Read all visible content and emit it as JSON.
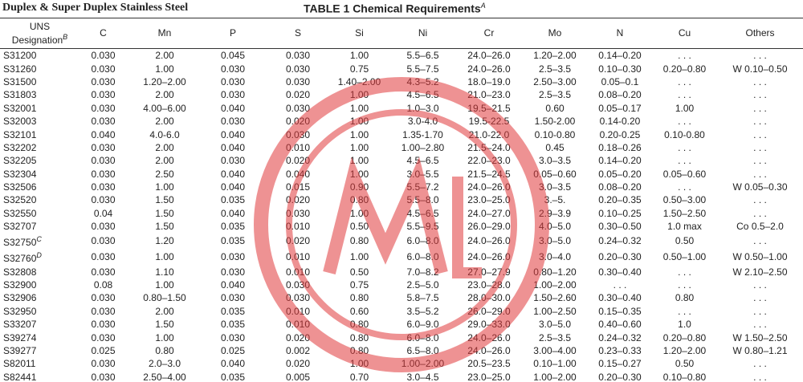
{
  "header": {
    "left_title": "Duplex & Super Duplex Stainless Steel",
    "table_title": "TABLE 1 Chemical Requirements",
    "table_title_mark": "A"
  },
  "table": {
    "columns": [
      {
        "label": "UNS Designation",
        "mark": "B"
      },
      {
        "label": "C"
      },
      {
        "label": "Mn"
      },
      {
        "label": "P"
      },
      {
        "label": "S"
      },
      {
        "label": "Si"
      },
      {
        "label": "Ni"
      },
      {
        "label": "Cr"
      },
      {
        "label": "Mo"
      },
      {
        "label": "N"
      },
      {
        "label": "Cu"
      },
      {
        "label": "Others"
      }
    ],
    "rows": [
      {
        "uns": "S31200",
        "values": [
          "0.030",
          "2.00",
          "0.045",
          "0.030",
          "1.00",
          "5.5–6.5",
          "24.0–26.0",
          "1.20–2.00",
          "0.14–0.20",
          ". . .",
          ". . ."
        ]
      },
      {
        "uns": "S31260",
        "values": [
          "0.030",
          "1.00",
          "0.030",
          "0.030",
          "0.75",
          "5.5–7.5",
          "24.0–26.0",
          "2.5–3.5",
          "0.10–0.30",
          "0.20–0.80",
          "W 0.10–0.50"
        ]
      },
      {
        "uns": "S31500",
        "values": [
          "0.030",
          "1.20–2.00",
          "0.030",
          "0.030",
          "1.40–2.00",
          "4.3–5.2",
          "18.0–19.0",
          "2.50–3.00",
          "0.05–0.1",
          ". . .",
          ". . ."
        ]
      },
      {
        "uns": "S31803",
        "values": [
          "0.030",
          "2.00",
          "0.030",
          "0.020",
          "1.00",
          "4.5–6.5",
          "21.0–23.0",
          "2.5–3.5",
          "0.08–0.20",
          ". . .",
          ". . ."
        ]
      },
      {
        "uns": "S32001",
        "values": [
          "0.030",
          "4.00–6.00",
          "0.040",
          "0.030",
          "1.00",
          "1.0–3.0",
          "19.5–21.5",
          "0.60",
          "0.05–0.17",
          "1.00",
          ". . ."
        ]
      },
      {
        "uns": "S32003",
        "values": [
          "0.030",
          "2.00",
          "0.030",
          "0.020",
          "1.00",
          "3.0-4.0",
          "19.5-22.5",
          "1.50-2.00",
          "0.14-0.20",
          ". . .",
          ". . ."
        ]
      },
      {
        "uns": "S32101",
        "values": [
          "0.040",
          "4.0-6.0",
          "0.040",
          "0.030",
          "1.00",
          "1.35-1.70",
          "21.0-22.0",
          "0.10-0.80",
          "0.20-0.25",
          "0.10-0.80",
          ". . ."
        ]
      },
      {
        "uns": "S32202",
        "values": [
          "0.030",
          "2.00",
          "0.040",
          "0.010",
          "1.00",
          "1.00–2.80",
          "21.5–24.0",
          "0.45",
          "0.18–0.26",
          ". . .",
          ". . ."
        ]
      },
      {
        "uns": "S32205",
        "values": [
          "0.030",
          "2.00",
          "0.030",
          "0.020",
          "1.00",
          "4.5–6.5",
          "22.0–23.0",
          "3.0–3.5",
          "0.14–0.20",
          ". . .",
          ". . ."
        ]
      },
      {
        "uns": "S32304",
        "values": [
          "0.030",
          "2.50",
          "0.040",
          "0.040",
          "1.00",
          "3.0–5.5",
          "21.5–24.5",
          "0.05–0.60",
          "0.05–0.20",
          "0.05–0.60",
          ". . ."
        ]
      },
      {
        "uns": "S32506",
        "values": [
          "0.030",
          "1.00",
          "0.040",
          "0.015",
          "0.90",
          "5.5–7.2",
          "24.0–26.0",
          "3.0–3.5",
          "0.08–0.20",
          ". . .",
          "W 0.05–0.30"
        ]
      },
      {
        "uns": "S32520",
        "values": [
          "0.030",
          "1.50",
          "0.035",
          "0.020",
          "0.80",
          "5.5–8.0",
          "23.0–25.0",
          "3.–5.",
          "0.20–0.35",
          "0.50–3.00",
          ". . ."
        ]
      },
      {
        "uns": "S32550",
        "values": [
          "0.04",
          "1.50",
          "0.040",
          "0.030",
          "1.00",
          "4.5–6.5",
          "24.0–27.0",
          "2.9–3.9",
          "0.10–0.25",
          "1.50–2.50",
          ". . ."
        ]
      },
      {
        "uns": "S32707",
        "values": [
          "0.030",
          "1.50",
          "0.035",
          "0.010",
          "0.50",
          "5.5–9.5",
          "26.0–29.0",
          "4.0–5.0",
          "0.30–0.50",
          "1.0 max",
          "Co 0.5–2.0"
        ]
      },
      {
        "uns": "S32750",
        "mark": "C",
        "values": [
          "0.030",
          "1.20",
          "0.035",
          "0.020",
          "0.80",
          "6.0–8.0",
          "24.0–26.0",
          "3.0–5.0",
          "0.24–0.32",
          "0.50",
          ". . ."
        ]
      },
      {
        "uns": "S32760",
        "mark": "D",
        "values": [
          "0.030",
          "1.00",
          "0.030",
          "0.010",
          "1.00",
          "6.0–8.0",
          "24.0–26.0",
          "3.0–4.0",
          "0.20–0.30",
          "0.50–1.00",
          "W 0.50–1.00"
        ]
      },
      {
        "uns": "S32808",
        "values": [
          "0.030",
          "1.10",
          "0.030",
          "0.010",
          "0.50",
          "7.0–8.2",
          "27.0–27.9",
          "0.80–1.20",
          "0.30–0.40",
          ". . .",
          "W 2.10–2.50"
        ]
      },
      {
        "uns": "S32900",
        "values": [
          "0.08",
          "1.00",
          "0.040",
          "0.030",
          "0.75",
          "2.5–5.0",
          "23.0–28.0",
          "1.00–2.00",
          ". . .",
          ". . .",
          ". . ."
        ]
      },
      {
        "uns": "S32906",
        "values": [
          "0.030",
          "0.80–1.50",
          "0.030",
          "0.030",
          "0.80",
          "5.8–7.5",
          "28.0–30.0",
          "1.50–2.60",
          "0.30–0.40",
          "0.80",
          ". . ."
        ]
      },
      {
        "uns": "S32950",
        "values": [
          "0.030",
          "2.00",
          "0.035",
          "0.010",
          "0.60",
          "3.5–5.2",
          "26.0–29.0",
          "1.00–2.50",
          "0.15–0.35",
          ". . .",
          ". . ."
        ]
      },
      {
        "uns": "S33207",
        "values": [
          "0.030",
          "1.50",
          "0.035",
          "0.010",
          "0.80",
          "6.0–9.0",
          "29.0–33.0",
          "3.0–5.0",
          "0.40–0.60",
          "1.0",
          ". . ."
        ]
      },
      {
        "uns": "S39274",
        "values": [
          "0.030",
          "1.00",
          "0.030",
          "0.020",
          "0.80",
          "6.0–8.0",
          "24.0–26.0",
          "2.5–3.5",
          "0.24–0.32",
          "0.20–0.80",
          "W 1.50–2.50"
        ]
      },
      {
        "uns": "S39277",
        "values": [
          "0.025",
          "0.80",
          "0.025",
          "0.002",
          "0.80",
          "6.5–8.0",
          "24.0–26.0",
          "3.00–4.00",
          "0.23–0.33",
          "1.20–2.00",
          "W 0.80–1.21"
        ]
      },
      {
        "uns": "S82011",
        "values": [
          "0.030",
          "2.0–3.0",
          "0.040",
          "0.020",
          "1.00",
          "1.00–2.00",
          "20.5–23.5",
          "0.10–1.00",
          "0.15–0.27",
          "0.50",
          ". . ."
        ]
      },
      {
        "uns": "S82441",
        "values": [
          "0.030",
          "2.50–4.00",
          "0.035",
          "0.005",
          "0.70",
          "3.0–4.5",
          "23.0–25.0",
          "1.00–2.00",
          "0.20–0.30",
          "0.10–0.80",
          ". . ."
        ]
      }
    ]
  }
}
